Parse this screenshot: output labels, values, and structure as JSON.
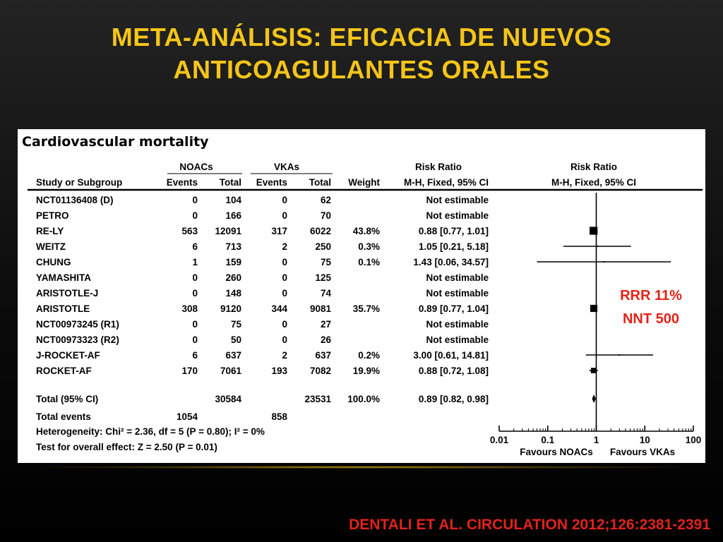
{
  "slide": {
    "title_line1": "META-ANÁLISIS: EFICACIA DE NUEVOS",
    "title_line2": "ANTICOAGULANTES ORALES",
    "citation": "DENTALI ET AL.  CIRCULATION 2012;126:2381-2391",
    "annotation": {
      "rrr": "RRR 11%",
      "nnt": "NNT 500",
      "color": "#e2231a"
    },
    "title_color": "#f5c518"
  },
  "chart_data": {
    "type": "forest",
    "title": "Cardiovascular  mortality",
    "headers": {
      "group_noac": "NOACs",
      "group_vka": "VKAs",
      "risk_ratio": "Risk Ratio",
      "risk_ratio_plot": "Risk Ratio",
      "study": "Study or Subgroup",
      "events_noac": "Events",
      "total_noac": "Total",
      "events_vka": "Events",
      "total_vka": "Total",
      "weight": "Weight",
      "method": "M-H, Fixed, 95% CI",
      "method_plot": "M-H, Fixed, 95% CI"
    },
    "studies": [
      {
        "name": "NCT01136408 (D)",
        "events_noac": "0",
        "total_noac": "104",
        "events_vka": "0",
        "total_vka": "62",
        "weight": "",
        "rr_text": "Not estimable",
        "rr": null,
        "lo": null,
        "hi": null
      },
      {
        "name": "PETRO",
        "events_noac": "0",
        "total_noac": "166",
        "events_vka": "0",
        "total_vka": "70",
        "weight": "",
        "rr_text": "Not estimable",
        "rr": null,
        "lo": null,
        "hi": null
      },
      {
        "name": "RE-LY",
        "events_noac": "563",
        "total_noac": "12091",
        "events_vka": "317",
        "total_vka": "6022",
        "weight": "43.8%",
        "rr_text": "0.88 [0.77, 1.01]",
        "rr": 0.88,
        "lo": 0.77,
        "hi": 1.01
      },
      {
        "name": "WEITZ",
        "events_noac": "6",
        "total_noac": "713",
        "events_vka": "2",
        "total_vka": "250",
        "weight": "0.3%",
        "rr_text": "1.05 [0.21, 5.18]",
        "rr": 1.05,
        "lo": 0.21,
        "hi": 5.18
      },
      {
        "name": "CHUNG",
        "events_noac": "1",
        "total_noac": "159",
        "events_vka": "0",
        "total_vka": "75",
        "weight": "0.1%",
        "rr_text": "1.43 [0.06, 34.57]",
        "rr": 1.43,
        "lo": 0.06,
        "hi": 34.57
      },
      {
        "name": "YAMASHITA",
        "events_noac": "0",
        "total_noac": "260",
        "events_vka": "0",
        "total_vka": "125",
        "weight": "",
        "rr_text": "Not estimable",
        "rr": null,
        "lo": null,
        "hi": null
      },
      {
        "name": "ARISTOTLE-J",
        "events_noac": "0",
        "total_noac": "148",
        "events_vka": "0",
        "total_vka": "74",
        "weight": "",
        "rr_text": "Not estimable",
        "rr": null,
        "lo": null,
        "hi": null
      },
      {
        "name": "ARISTOTLE",
        "events_noac": "308",
        "total_noac": "9120",
        "events_vka": "344",
        "total_vka": "9081",
        "weight": "35.7%",
        "rr_text": "0.89 [0.77, 1.04]",
        "rr": 0.89,
        "lo": 0.77,
        "hi": 1.04
      },
      {
        "name": "NCT00973245 (R1)",
        "events_noac": "0",
        "total_noac": "75",
        "events_vka": "0",
        "total_vka": "27",
        "weight": "",
        "rr_text": "Not estimable",
        "rr": null,
        "lo": null,
        "hi": null
      },
      {
        "name": "NCT00973323 (R2)",
        "events_noac": "0",
        "total_noac": "50",
        "events_vka": "0",
        "total_vka": "26",
        "weight": "",
        "rr_text": "Not estimable",
        "rr": null,
        "lo": null,
        "hi": null
      },
      {
        "name": "J-ROCKET-AF",
        "events_noac": "6",
        "total_noac": "637",
        "events_vka": "2",
        "total_vka": "637",
        "weight": "0.2%",
        "rr_text": "3.00 [0.61, 14.81]",
        "rr": 3.0,
        "lo": 0.61,
        "hi": 14.81
      },
      {
        "name": "ROCKET-AF",
        "events_noac": "170",
        "total_noac": "7061",
        "events_vka": "193",
        "total_vka": "7082",
        "weight": "19.9%",
        "rr_text": "0.88 [0.72, 1.08]",
        "rr": 0.88,
        "lo": 0.72,
        "hi": 1.08
      }
    ],
    "total": {
      "name": "Total (95% CI)",
      "total_noac": "30584",
      "total_vka": "23531",
      "weight": "100.0%",
      "rr_text": "0.89 [0.82, 0.98]",
      "rr": 0.89,
      "lo": 0.82,
      "hi": 0.98
    },
    "total_events": {
      "label": "Total events",
      "noac": "1054",
      "vka": "858"
    },
    "heterogeneity": "Heterogeneity: Chi² = 2.36, df = 5 (P = 0.80); I² = 0%",
    "overall_effect": "Test for overall effect: Z = 2.50 (P = 0.01)",
    "axis": {
      "scale": "log",
      "range": [
        0.01,
        100
      ],
      "ticks": [
        0.01,
        0.1,
        1,
        10,
        100
      ],
      "tick_labels": [
        "0.01",
        "0.1",
        "1",
        "10",
        "100"
      ],
      "favours_left": "Favours NOACs",
      "favours_right": "Favours VKAs"
    }
  }
}
